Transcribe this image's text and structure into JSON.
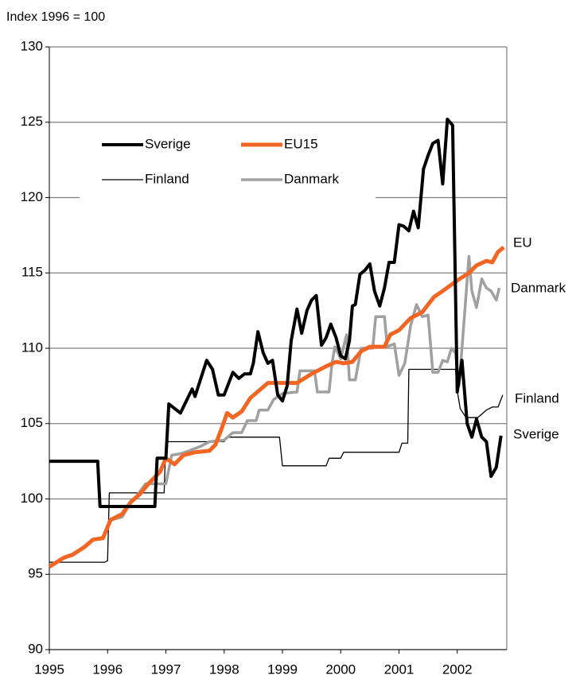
{
  "chart_data": {
    "type": "line",
    "title": "Index 1996 = 100",
    "xlim": [
      1995,
      2002.85
    ],
    "xticks": [
      1995,
      1996,
      1997,
      1998,
      1999,
      2000,
      2001,
      2002
    ],
    "ylim": [
      90,
      130
    ],
    "yticks": [
      90,
      95,
      100,
      105,
      110,
      115,
      120,
      125,
      130
    ],
    "grid": true,
    "legend": "upper left",
    "annotations": [
      "EU",
      "Danmark",
      "Finland",
      "Sverige"
    ],
    "series": [
      {
        "name": "Sverige",
        "color": "#000000",
        "x": [
          1995.0,
          1995.83,
          1995.87,
          1996.81,
          1996.85,
          1997.0,
          1997.05,
          1997.25,
          1997.45,
          1997.5,
          1997.7,
          1997.8,
          1997.9,
          1998.0,
          1998.15,
          1998.25,
          1998.35,
          1998.45,
          1998.5,
          1998.58,
          1998.67,
          1998.75,
          1998.83,
          1998.92,
          1999.0,
          1999.08,
          1999.15,
          1999.25,
          1999.33,
          1999.42,
          1999.5,
          1999.58,
          1999.67,
          1999.75,
          1999.83,
          1999.92,
          2000.0,
          2000.08,
          2000.15,
          2000.2,
          2000.25,
          2000.33,
          2000.42,
          2000.5,
          2000.58,
          2000.67,
          2000.75,
          2000.83,
          2000.92,
          2001.0,
          2001.08,
          2001.17,
          2001.25,
          2001.33,
          2001.42,
          2001.5,
          2001.58,
          2001.67,
          2001.75,
          2001.83,
          2001.92,
          2002.0,
          2002.08,
          2002.17,
          2002.25,
          2002.33,
          2002.42,
          2002.5,
          2002.58,
          2002.67,
          2002.75
        ],
        "values": [
          102.5,
          102.5,
          99.5,
          99.5,
          102.7,
          102.7,
          106.3,
          105.7,
          107.3,
          106.8,
          109.2,
          108.6,
          106.9,
          106.9,
          108.4,
          108.0,
          108.3,
          108.3,
          109.0,
          111.1,
          109.7,
          109.0,
          109.2,
          106.9,
          106.5,
          107.5,
          110.5,
          112.6,
          111.0,
          112.5,
          113.2,
          113.5,
          110.2,
          110.7,
          111.6,
          110.7,
          109.5,
          109.3,
          110.5,
          112.8,
          112.9,
          114.9,
          115.2,
          115.6,
          113.8,
          112.8,
          114.0,
          115.7,
          115.7,
          118.2,
          118.1,
          117.8,
          119.1,
          118.0,
          121.9,
          122.8,
          123.6,
          123.8,
          120.9,
          125.2,
          124.8,
          107.1,
          109.2,
          105.0,
          104.1,
          105.3,
          104.1,
          103.8,
          101.5,
          102.1,
          104.2
        ]
      },
      {
        "name": "EU15",
        "color": "#f26522",
        "x": [
          1995.0,
          1995.25,
          1995.4,
          1995.6,
          1995.75,
          1995.92,
          1996.05,
          1996.25,
          1996.4,
          1996.55,
          1996.7,
          1996.9,
          1997.0,
          1997.15,
          1997.3,
          1997.5,
          1997.75,
          1997.85,
          1997.95,
          1998.05,
          1998.15,
          1998.3,
          1998.45,
          1998.6,
          1998.75,
          1999.0,
          1999.25,
          1999.5,
          1999.75,
          1999.92,
          2000.05,
          2000.2,
          2000.35,
          2000.5,
          2000.75,
          2000.85,
          2001.0,
          2001.2,
          2001.4,
          2001.6,
          2001.75,
          2002.0,
          2002.2,
          2002.33,
          2002.5,
          2002.6,
          2002.7,
          2002.8
        ],
        "values": [
          95.5,
          96.1,
          96.3,
          96.8,
          97.3,
          97.4,
          98.6,
          99.0,
          99.8,
          100.3,
          101.0,
          101.8,
          102.7,
          102.3,
          102.9,
          103.1,
          103.2,
          103.6,
          104.6,
          105.7,
          105.4,
          105.8,
          106.7,
          107.2,
          107.7,
          107.7,
          107.7,
          108.3,
          108.8,
          109.1,
          109.0,
          109.1,
          109.8,
          110.1,
          110.1,
          110.9,
          111.2,
          112.0,
          112.4,
          113.4,
          113.8,
          114.5,
          115.0,
          115.5,
          115.8,
          115.7,
          116.4,
          116.7
        ]
      },
      {
        "name": "Finland",
        "color": "#000000",
        "x": [
          1995.0,
          1995.95,
          1996.0,
          1996.03,
          1996.97,
          1997.0,
          1998.0,
          1998.05,
          1998.95,
          1999.0,
          1999.75,
          1999.8,
          2000.0,
          2000.05,
          2001.0,
          2001.05,
          2001.15,
          2001.17,
          2001.97,
          2002.0,
          2002.05,
          2002.15,
          2002.35,
          2002.5,
          2002.6,
          2002.7,
          2002.78
        ],
        "values": [
          95.8,
          95.8,
          95.9,
          100.4,
          100.4,
          103.8,
          103.8,
          104.1,
          104.1,
          102.2,
          102.2,
          102.7,
          102.7,
          103.1,
          103.1,
          103.7,
          103.7,
          108.6,
          108.6,
          107.2,
          106.0,
          105.4,
          105.4,
          105.9,
          106.1,
          106.1,
          106.9
        ]
      },
      {
        "name": "Danmark",
        "color": "#a0a0a0",
        "x": [
          1996.05,
          1996.25,
          1996.4,
          1996.5,
          1996.65,
          1997.0,
          1997.1,
          1997.25,
          1997.4,
          1997.6,
          1997.75,
          1998.0,
          1998.15,
          1998.3,
          1998.4,
          1998.55,
          1998.6,
          1998.75,
          1998.85,
          1999.0,
          1999.25,
          1999.3,
          1999.55,
          1999.6,
          1999.8,
          1999.85,
          1999.9,
          2000.0,
          2000.1,
          2000.15,
          2000.25,
          2000.35,
          2000.55,
          2000.6,
          2000.75,
          2000.8,
          2000.92,
          2001.0,
          2001.1,
          2001.2,
          2001.3,
          2001.4,
          2001.5,
          2001.58,
          2001.67,
          2001.75,
          2001.83,
          2001.9,
          2001.97,
          2002.03,
          2002.1,
          2002.2,
          2002.25,
          2002.33,
          2002.42,
          2002.5,
          2002.58,
          2002.67,
          2002.72
        ],
        "values": [
          98.6,
          98.8,
          99.8,
          100.2,
          101.0,
          101.0,
          102.9,
          103.0,
          103.2,
          103.5,
          103.8,
          103.9,
          104.4,
          104.4,
          105.2,
          105.2,
          105.9,
          105.9,
          106.6,
          107.0,
          107.1,
          108.5,
          108.5,
          107.1,
          107.1,
          109.0,
          110.1,
          109.3,
          110.9,
          107.9,
          107.9,
          110.0,
          110.0,
          112.1,
          112.1,
          110.1,
          110.3,
          108.2,
          109.0,
          111.5,
          112.9,
          112.1,
          112.2,
          108.4,
          108.4,
          109.2,
          109.1,
          110.0,
          109.7,
          107.5,
          111.0,
          116.1,
          113.8,
          112.7,
          114.6,
          114.0,
          113.8,
          113.2,
          114.0
        ]
      }
    ]
  }
}
